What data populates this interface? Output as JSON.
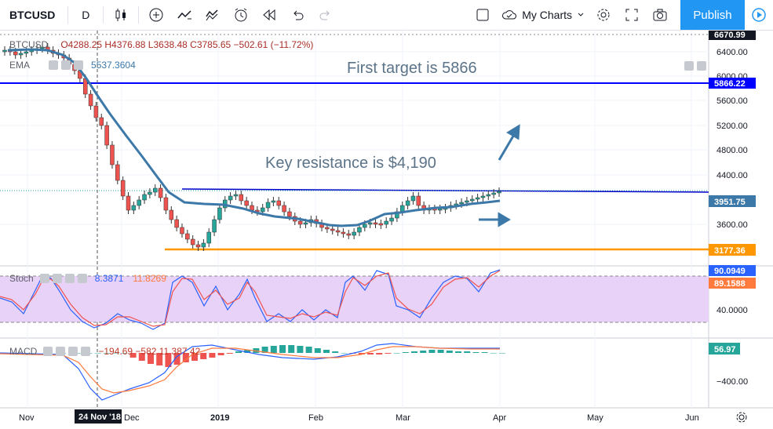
{
  "toolbar": {
    "symbol": "BTCUSD",
    "interval": "D",
    "my_charts": "My Charts",
    "publish": "Publish"
  },
  "main_pane": {
    "symbol_label": "BTCUSD",
    "ohlc": "O4288.25  H4376.88  L3638.48  C3785.65  −502.61 (−11.72%)",
    "ema_label": "EMA",
    "ema_value": "5537.3604",
    "annotation_target": "First target is 5866",
    "annotation_resistance": "Key resistance is $4,190"
  },
  "price_axis": {
    "ticks": [
      "6400.00",
      "6000.00",
      "5600.00",
      "5200.00",
      "4800.00",
      "4400.00",
      "3600.00"
    ],
    "tags": {
      "top": "6670.99",
      "target": "5866.22",
      "ema": "3951.75",
      "support": "3177.36"
    }
  },
  "stoch_pane": {
    "label": "Stoch",
    "k": "8.3871",
    "d": "11.8269",
    "tick": "40.0000",
    "tags": {
      "k": "90.0949",
      "d": "89.1588"
    }
  },
  "macd_pane": {
    "label": "MACD",
    "values": "−194.69  −582.11  387.42",
    "tick": "−400.00",
    "tag": "56.97"
  },
  "time_axis": {
    "labels": [
      "Nov",
      "24 Nov '18",
      "Dec",
      "2019",
      "Feb",
      "Mar",
      "Apr",
      "May",
      "Jun"
    ]
  },
  "colors": {
    "up": "#26a69a",
    "down": "#ef5350",
    "ema": "#3c78a8",
    "target": "#0000ff",
    "support": "#ff9800",
    "stoch_bg": "#e9d2f7",
    "publish": "#2196f3"
  }
}
